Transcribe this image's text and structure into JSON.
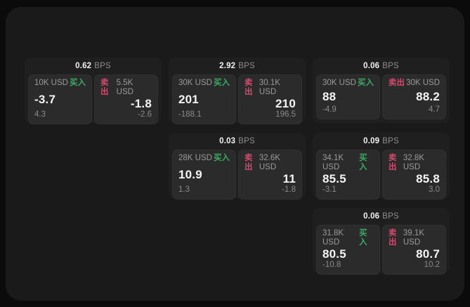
{
  "colors": {
    "buy": "#3cab63",
    "sell": "#d04a6e",
    "price_text": "#f5f5f5",
    "muted_text": "#9b9b9b",
    "card_bg": "#1f1f20",
    "tile_bg": "#2b2b2c",
    "surface_bg": "#1a1a1b"
  },
  "cards": [
    {
      "bps": "0.62",
      "bps_unit": "BPS",
      "buy": {
        "amount": "10K USD",
        "side": "买入",
        "price": "-3.7",
        "delta": "4.3"
      },
      "sell": {
        "side": "卖出",
        "amount": "5.5K USD",
        "price": "-1.8",
        "delta": "-2.6"
      }
    },
    {
      "bps": "2.92",
      "bps_unit": "BPS",
      "buy": {
        "amount": "30K USD",
        "side": "买入",
        "price": "201",
        "delta": "-188.1"
      },
      "sell": {
        "side": "卖出",
        "amount": "30.1K USD",
        "price": "210",
        "delta": "196.5"
      }
    },
    {
      "bps": "0.06",
      "bps_unit": "BPS",
      "buy": {
        "amount": "30K USD",
        "side": "买入",
        "price": "88",
        "delta": "-4.9"
      },
      "sell": {
        "side": "卖出",
        "amount": "30K USD",
        "price": "88.2",
        "delta": "4.7"
      }
    },
    {
      "bps": "0.03",
      "bps_unit": "BPS",
      "buy": {
        "amount": "28K USD",
        "side": "买入",
        "price": "10.9",
        "delta": "1.3"
      },
      "sell": {
        "side": "卖出",
        "amount": "32.6K USD",
        "price": "11",
        "delta": "-1.8"
      }
    },
    {
      "bps": "0.09",
      "bps_unit": "BPS",
      "buy": {
        "amount": "34.1K USD",
        "side": "买入",
        "price": "85.5",
        "delta": "-3.1"
      },
      "sell": {
        "side": "卖出",
        "amount": "32.8K USD",
        "price": "85.8",
        "delta": "3.0"
      }
    },
    {
      "bps": "0.06",
      "bps_unit": "BPS",
      "buy": {
        "amount": "31.8K USD",
        "side": "买入",
        "price": "80.5",
        "delta": "-10.8"
      },
      "sell": {
        "side": "卖出",
        "amount": "39.1K USD",
        "price": "80.7",
        "delta": "10.2"
      }
    }
  ]
}
